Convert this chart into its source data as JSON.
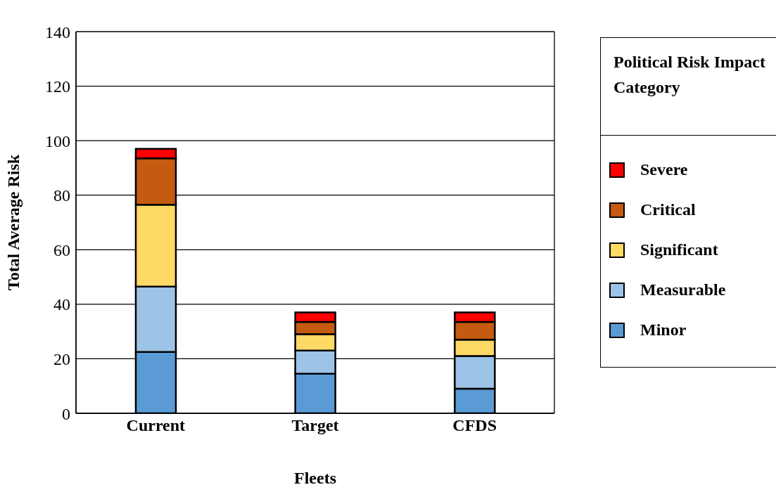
{
  "chart_data": {
    "type": "bar",
    "stacked": true,
    "xlabel": "Fleets",
    "ylabel": "Total Average Risk",
    "legend_title": "Political Risk Impact Category",
    "categories": [
      "Current",
      "Target",
      "CFDS"
    ],
    "series": [
      {
        "name": "Minor",
        "color": "#5b9bd5",
        "values": [
          22.5,
          14.5,
          9
        ]
      },
      {
        "name": "Measurable",
        "color": "#9dc3e6",
        "values": [
          24,
          8.5,
          12
        ]
      },
      {
        "name": "Significant",
        "color": "#ffd966",
        "values": [
          30,
          6,
          6
        ]
      },
      {
        "name": "Critical",
        "color": "#c55a11",
        "values": [
          17,
          4.5,
          6.5
        ]
      },
      {
        "name": "Severe",
        "color": "#ff0000",
        "values": [
          3.5,
          3.5,
          3.5
        ]
      }
    ],
    "ylim": [
      0,
      140
    ],
    "yticks": [
      0,
      20,
      40,
      60,
      80,
      100,
      120,
      140
    ],
    "grid": "y",
    "legend": "right"
  }
}
